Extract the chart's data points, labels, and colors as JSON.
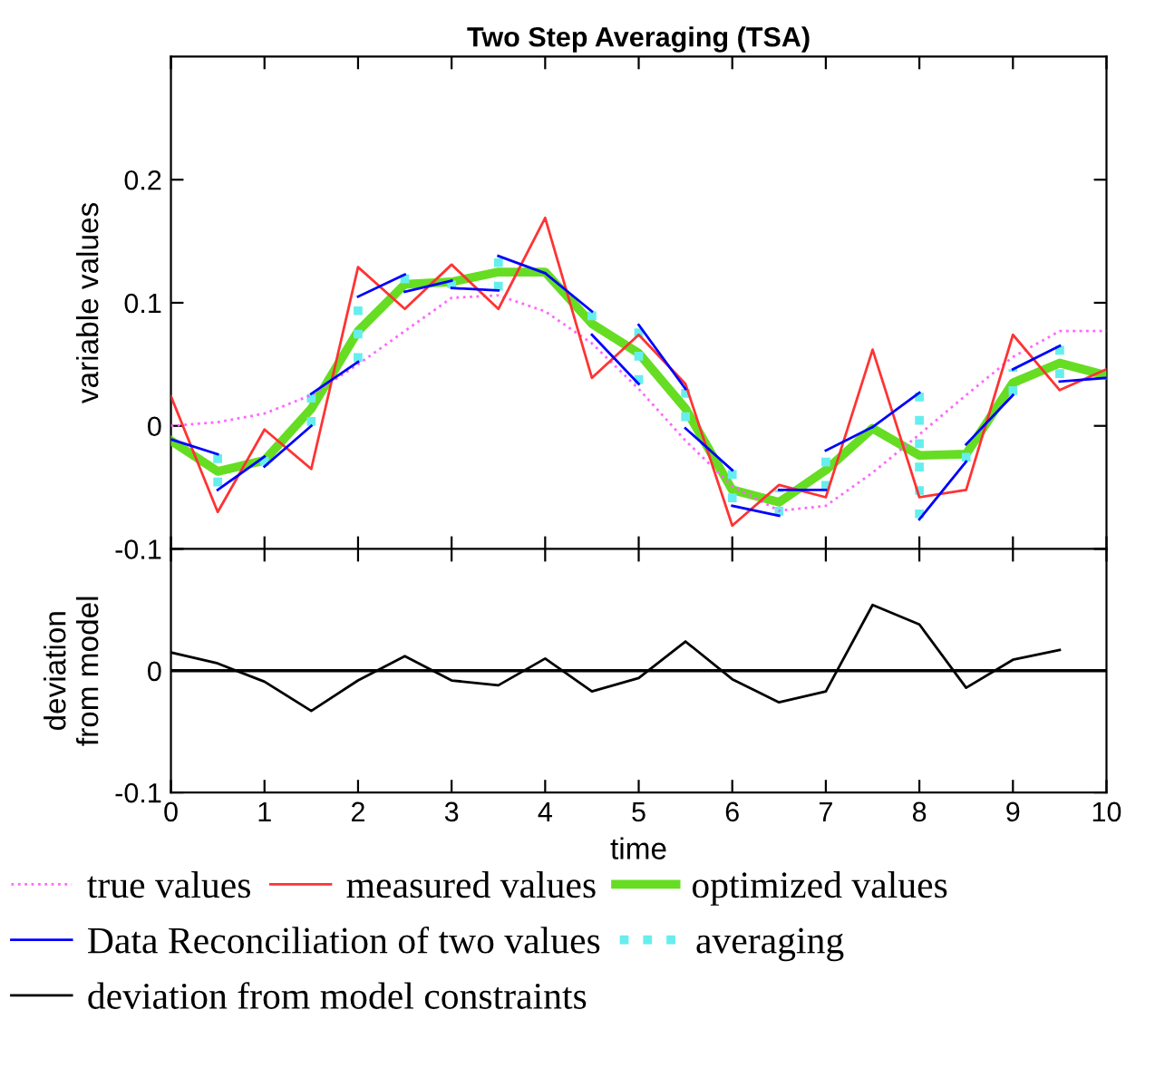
{
  "chart_data": [
    {
      "type": "line",
      "title": "Two Step Averaging (TSA)",
      "ylabel": "variable values",
      "xlim": [
        0,
        10
      ],
      "xticks": [
        0,
        1,
        2,
        3,
        4,
        5,
        6,
        7,
        8,
        9,
        10
      ],
      "ylim": [
        -0.1,
        0.3
      ],
      "yticks": [
        -0.1,
        0,
        0.1,
        0.2
      ],
      "tick_labels": "y",
      "grid": false,
      "legend": "bottom",
      "series": [
        {
          "name": "true values",
          "color": "#ff66ff",
          "line_style": "dotted",
          "x": [
            0,
            0.5,
            1,
            1.5,
            2,
            2.5,
            3,
            3.5,
            4,
            4.5,
            5,
            5.5,
            6,
            6.5,
            7,
            7.5,
            8,
            8.5,
            9,
            9.5,
            10
          ],
          "values": [
            0,
            0.003,
            0.01,
            0.025,
            0.05,
            0.077,
            0.104,
            0.106,
            0.093,
            0.067,
            0.03,
            -0.012,
            -0.049,
            -0.069,
            -0.065,
            -0.038,
            -0.007,
            0.025,
            0.056,
            0.077,
            0.077
          ]
        },
        {
          "name": "measured values",
          "color": "#ff3333",
          "line_style": "solid",
          "x": [
            0,
            0.5,
            1,
            1.5,
            2,
            2.5,
            3,
            3.5,
            4,
            4.5,
            5,
            5.5,
            6,
            6.5,
            7,
            7.5,
            8,
            8.5,
            9,
            9.5,
            10
          ],
          "values": [
            0.024,
            -0.07,
            -0.003,
            -0.035,
            0.129,
            0.095,
            0.131,
            0.095,
            0.169,
            0.039,
            0.074,
            0.034,
            -0.081,
            -0.048,
            -0.058,
            0.062,
            -0.058,
            -0.052,
            0.074,
            0.029,
            0.046
          ]
        },
        {
          "name": "optimized values",
          "color": "#66dd22",
          "line_style": "solid",
          "x": [
            0,
            0.5,
            1,
            1.5,
            2,
            2.5,
            3,
            3.5,
            4,
            4.5,
            5,
            5.5,
            6,
            6.5,
            7,
            7.5,
            8,
            8.5,
            9,
            9.5,
            10
          ],
          "values": [
            -0.012,
            -0.037,
            -0.028,
            0.014,
            0.077,
            0.115,
            0.117,
            0.125,
            0.125,
            0.083,
            0.059,
            0.014,
            -0.052,
            -0.062,
            -0.036,
            -0.002,
            -0.024,
            -0.023,
            0.035,
            0.051,
            0.041
          ]
        },
        {
          "name": "Data Reconciliation of two values",
          "color": "#0000ff",
          "line_style": "solid",
          "x": [
            0,
            0.5,
            null,
            0.5,
            1,
            null,
            1,
            1.5,
            null,
            1.5,
            2,
            null,
            2,
            2.5,
            null,
            2.5,
            3,
            null,
            3,
            3.5,
            null,
            3.5,
            4,
            null,
            4,
            4.5,
            null,
            4.5,
            5,
            null,
            5,
            5.5,
            null,
            5.5,
            6,
            null,
            6,
            6.5,
            null,
            6.5,
            7,
            null,
            7,
            7.5,
            null,
            7.5,
            8,
            null,
            8,
            8.5,
            null,
            8.5,
            9,
            null,
            9,
            9.5,
            null,
            9.5,
            10
          ],
          "values": [
            -0.011,
            -0.023,
            null,
            -0.052,
            -0.025,
            null,
            -0.033,
            0.0,
            null,
            0.026,
            0.052,
            null,
            0.105,
            0.123,
            null,
            0.109,
            0.118,
            null,
            0.112,
            0.11,
            null,
            0.138,
            0.124,
            null,
            0.124,
            0.093,
            null,
            0.074,
            0.034,
            null,
            0.082,
            0.03,
            null,
            -0.002,
            -0.036,
            null,
            -0.065,
            -0.073,
            null,
            -0.052,
            -0.052,
            null,
            -0.02,
            -0.001,
            null,
            -0.001,
            0.027,
            null,
            -0.076,
            -0.029,
            null,
            -0.015,
            0.025,
            null,
            0.046,
            0.065,
            null,
            0.036,
            0.039
          ]
        },
        {
          "name": "averaging",
          "color": "#66eeee",
          "line_style": "dotted",
          "x": [
            0.5,
            0.5,
            null,
            1,
            1,
            null,
            1.5,
            1.5,
            null,
            2,
            2,
            null,
            2.5,
            2.5,
            null,
            3,
            3,
            null,
            3.5,
            3.5,
            null,
            4.5,
            4.5,
            null,
            5,
            5,
            null,
            5.5,
            5.5,
            null,
            6,
            6,
            null,
            6.5,
            6.5,
            null,
            7,
            7,
            null,
            8,
            8,
            null,
            8.5,
            8.5,
            null,
            9,
            9,
            null,
            9.5,
            9.5
          ],
          "values": [
            -0.023,
            -0.052,
            null,
            -0.025,
            -0.033,
            null,
            0.0,
            0.026,
            null,
            0.052,
            0.105,
            null,
            0.123,
            0.109,
            null,
            0.118,
            0.112,
            null,
            0.11,
            0.138,
            null,
            0.093,
            0.074,
            null,
            0.034,
            0.082,
            null,
            0.03,
            -0.002,
            null,
            -0.036,
            -0.065,
            null,
            -0.073,
            -0.052,
            null,
            -0.052,
            -0.02,
            null,
            0.027,
            -0.076,
            null,
            -0.029,
            -0.015,
            null,
            0.025,
            0.046,
            null,
            0.065,
            0.036
          ]
        }
      ]
    },
    {
      "type": "line",
      "xlabel": "time",
      "ylabel": "deviation\nfrom model",
      "xlim": [
        0,
        10
      ],
      "xticks": [
        0,
        1,
        2,
        3,
        4,
        5,
        6,
        7,
        8,
        9,
        10
      ],
      "ylim": [
        -0.1,
        0.1
      ],
      "yticks": [
        -0.1,
        0,
        {
          "value": 0.1,
          "label": null
        }
      ],
      "grid": false,
      "legend": "bottom",
      "ref_lines": [
        {
          "axis": "y",
          "value": 0,
          "color": "#000000"
        }
      ],
      "series": [
        {
          "name": "deviation from model constraints",
          "color": "#000000",
          "line_style": "solid",
          "x": [
            0,
            0.5,
            1,
            1.5,
            2,
            2.5,
            3,
            3.5,
            4,
            4.5,
            5,
            5.5,
            6,
            6.5,
            7,
            7.5,
            8,
            8.5,
            9,
            9.5
          ],
          "values": [
            0.015,
            0.006,
            -0.009,
            -0.033,
            -0.008,
            0.012,
            -0.008,
            -0.012,
            0.01,
            -0.017,
            -0.006,
            0.024,
            -0.007,
            -0.026,
            -0.017,
            0.054,
            0.038,
            -0.014,
            0.009,
            0.017
          ]
        }
      ]
    }
  ]
}
